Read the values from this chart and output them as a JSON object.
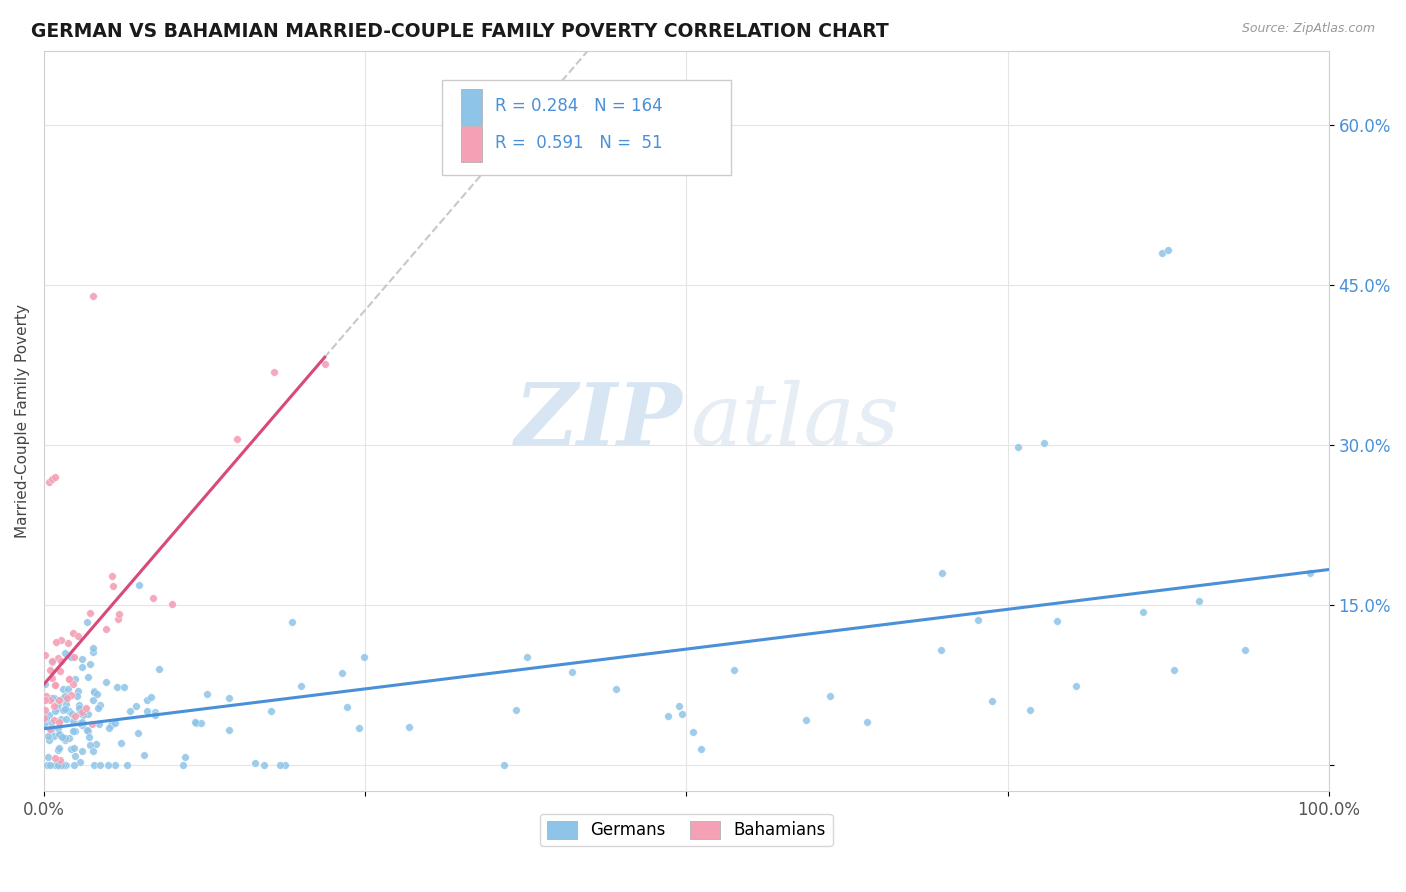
{
  "title": "GERMAN VS BAHAMIAN MARRIED-COUPLE FAMILY POVERTY CORRELATION CHART",
  "source": "Source: ZipAtlas.com",
  "ylabel": "Married-Couple Family Poverty",
  "xlim": [
    0.0,
    1.0
  ],
  "ylim": [
    -0.025,
    0.67
  ],
  "xticks": [
    0.0,
    0.25,
    0.5,
    0.75,
    1.0
  ],
  "xticklabels": [
    "0.0%",
    "",
    "",
    "",
    "100.0%"
  ],
  "yticks": [
    0.0,
    0.15,
    0.3,
    0.45,
    0.6
  ],
  "yticklabels": [
    "",
    "15.0%",
    "30.0%",
    "45.0%",
    "60.0%"
  ],
  "german_color": "#8ec4e8",
  "bahamian_color": "#f4a0b5",
  "german_R": 0.284,
  "german_N": 164,
  "bahamian_R": 0.591,
  "bahamian_N": 51,
  "trend_german_color": "#4a90d9",
  "trend_bahamian_color": "#d94a7a",
  "dashed_color": "#c8c8c8",
  "background_color": "#ffffff",
  "watermark_zip": "ZIP",
  "watermark_atlas": "atlas",
  "legend_label_german": "Germans",
  "legend_label_bahamian": "Bahamians",
  "legend_text_color": "#4a90d9",
  "tick_color_y": "#4a90d9",
  "tick_color_x": "#555555",
  "title_color": "#1a1a1a",
  "source_color": "#999999",
  "ylabel_color": "#444444"
}
